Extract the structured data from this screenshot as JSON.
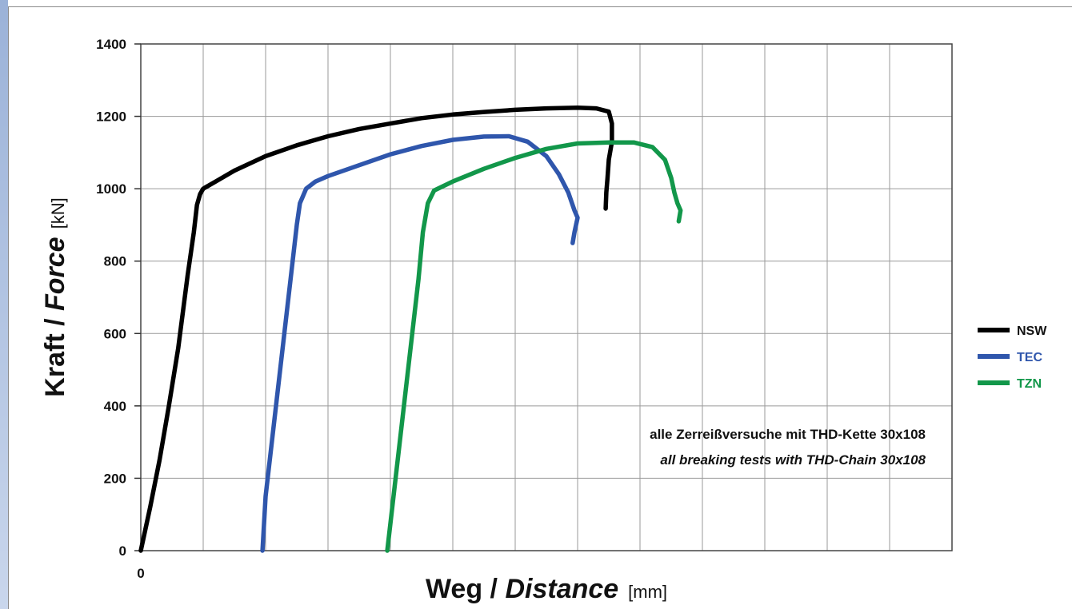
{
  "chart_data": {
    "type": "line",
    "title": "",
    "xlabel": {
      "main": "Weg / ",
      "italic": "Distance",
      "unit": "[mm]"
    },
    "ylabel": {
      "main": "Kraft / ",
      "italic": "Force",
      "unit": "[kN]"
    },
    "xlim": [
      0,
      13
    ],
    "ylim": [
      0,
      1400
    ],
    "x_ticks": [
      "0"
    ],
    "y_ticks": [
      "0",
      "200",
      "400",
      "600",
      "800",
      "1000",
      "1200",
      "1400"
    ],
    "grid": true,
    "legend": "right",
    "annotations": [
      "alle Zerreißversuche mit THD-Kette 30x108",
      "all breaking tests with THD-Chain 30x108"
    ],
    "series": [
      {
        "name": "NSW",
        "color": "#000000",
        "points": [
          [
            0,
            0
          ],
          [
            0.15,
            120
          ],
          [
            0.3,
            250
          ],
          [
            0.45,
            400
          ],
          [
            0.6,
            560
          ],
          [
            0.75,
            760
          ],
          [
            0.85,
            880
          ],
          [
            0.9,
            955
          ],
          [
            0.95,
            985
          ],
          [
            1.0,
            1000
          ],
          [
            1.2,
            1020
          ],
          [
            1.5,
            1050
          ],
          [
            2.0,
            1090
          ],
          [
            2.5,
            1120
          ],
          [
            3.0,
            1145
          ],
          [
            3.5,
            1165
          ],
          [
            4.0,
            1180
          ],
          [
            4.5,
            1195
          ],
          [
            5.0,
            1205
          ],
          [
            5.5,
            1212
          ],
          [
            6.0,
            1218
          ],
          [
            6.5,
            1222
          ],
          [
            7.0,
            1224
          ],
          [
            7.3,
            1222
          ],
          [
            7.5,
            1213
          ],
          [
            7.55,
            1180
          ],
          [
            7.55,
            1130
          ],
          [
            7.5,
            1080
          ],
          [
            7.48,
            1030
          ],
          [
            7.46,
            990
          ],
          [
            7.45,
            945
          ]
        ]
      },
      {
        "name": "TEC",
        "color": "#2f56ac",
        "points": [
          [
            1.95,
            0
          ],
          [
            2.0,
            150
          ],
          [
            2.1,
            300
          ],
          [
            2.2,
            450
          ],
          [
            2.3,
            600
          ],
          [
            2.4,
            750
          ],
          [
            2.5,
            900
          ],
          [
            2.55,
            960
          ],
          [
            2.65,
            1000
          ],
          [
            2.8,
            1020
          ],
          [
            3.0,
            1035
          ],
          [
            3.5,
            1065
          ],
          [
            4.0,
            1095
          ],
          [
            4.5,
            1118
          ],
          [
            5.0,
            1135
          ],
          [
            5.5,
            1144
          ],
          [
            5.9,
            1145
          ],
          [
            6.2,
            1130
          ],
          [
            6.5,
            1090
          ],
          [
            6.7,
            1040
          ],
          [
            6.85,
            990
          ],
          [
            6.95,
            940
          ],
          [
            7.0,
            920
          ],
          [
            6.95,
            880
          ],
          [
            6.92,
            850
          ]
        ]
      },
      {
        "name": "TZN",
        "color": "#12974a",
        "points": [
          [
            3.95,
            0
          ],
          [
            4.05,
            150
          ],
          [
            4.15,
            300
          ],
          [
            4.25,
            450
          ],
          [
            4.35,
            600
          ],
          [
            4.45,
            750
          ],
          [
            4.52,
            880
          ],
          [
            4.6,
            960
          ],
          [
            4.7,
            995
          ],
          [
            5.0,
            1020
          ],
          [
            5.5,
            1055
          ],
          [
            6.0,
            1085
          ],
          [
            6.5,
            1110
          ],
          [
            7.0,
            1125
          ],
          [
            7.5,
            1128
          ],
          [
            7.9,
            1128
          ],
          [
            8.2,
            1115
          ],
          [
            8.4,
            1080
          ],
          [
            8.5,
            1030
          ],
          [
            8.55,
            990
          ],
          [
            8.6,
            960
          ],
          [
            8.65,
            940
          ],
          [
            8.62,
            910
          ]
        ]
      }
    ]
  }
}
